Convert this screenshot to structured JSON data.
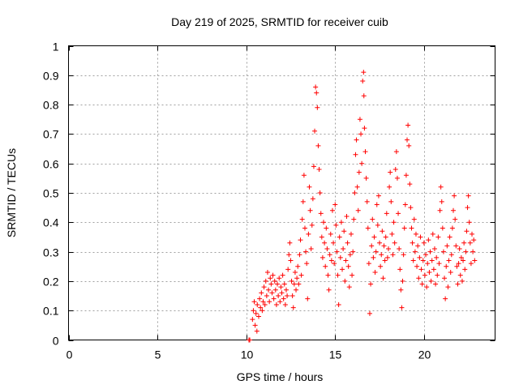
{
  "chart_data": {
    "type": "scatter",
    "title": "Day 219 of 2025, SRMTID for receiver cuib",
    "xlabel": "GPS time / hours",
    "ylabel": "SRMTID / TECUs",
    "xlim": [
      0,
      24
    ],
    "ylim": [
      0,
      1
    ],
    "xticks": [
      "0",
      "5",
      "10",
      "15",
      "20"
    ],
    "xtick_values": [
      0,
      5,
      10,
      15,
      20
    ],
    "yticks": [
      "0",
      "0.1",
      "0.2",
      "0.3",
      "0.4",
      "0.5",
      "0.6",
      "0.7",
      "0.8",
      "0.9",
      "1"
    ],
    "ytick_values": [
      0,
      0.1,
      0.2,
      0.3,
      0.4,
      0.5,
      0.6,
      0.7,
      0.8,
      0.9,
      1.0
    ],
    "grid": true,
    "marker": "+",
    "color": "#ff0000",
    "series": [
      {
        "name": "SRMTID",
        "points": [
          [
            10.15,
            0.0
          ],
          [
            10.2,
            0.0
          ],
          [
            10.35,
            0.07
          ],
          [
            10.4,
            0.1
          ],
          [
            10.45,
            0.13
          ],
          [
            10.5,
            0.05
          ],
          [
            10.55,
            0.09
          ],
          [
            10.6,
            0.03
          ],
          [
            10.62,
            0.12
          ],
          [
            10.7,
            0.08
          ],
          [
            10.75,
            0.14
          ],
          [
            10.8,
            0.11
          ],
          [
            10.85,
            0.16
          ],
          [
            10.9,
            0.1
          ],
          [
            10.95,
            0.13
          ],
          [
            11.0,
            0.18
          ],
          [
            11.05,
            0.12
          ],
          [
            11.1,
            0.2
          ],
          [
            11.15,
            0.15
          ],
          [
            11.2,
            0.23
          ],
          [
            11.25,
            0.17
          ],
          [
            11.3,
            0.13
          ],
          [
            11.35,
            0.21
          ],
          [
            11.4,
            0.19
          ],
          [
            11.45,
            0.16
          ],
          [
            11.5,
            0.22
          ],
          [
            11.55,
            0.14
          ],
          [
            11.6,
            0.2
          ],
          [
            11.65,
            0.17
          ],
          [
            11.7,
            0.12
          ],
          [
            11.75,
            0.19
          ],
          [
            11.8,
            0.15
          ],
          [
            11.85,
            0.21
          ],
          [
            11.9,
            0.13
          ],
          [
            11.95,
            0.18
          ],
          [
            12.0,
            0.16
          ],
          [
            12.05,
            0.22
          ],
          [
            12.1,
            0.14
          ],
          [
            12.15,
            0.19
          ],
          [
            12.2,
            0.12
          ],
          [
            12.25,
            0.17
          ],
          [
            12.3,
            0.15
          ],
          [
            12.35,
            0.24
          ],
          [
            12.4,
            0.29
          ],
          [
            12.45,
            0.33
          ],
          [
            12.5,
            0.27
          ],
          [
            12.55,
            0.2
          ],
          [
            12.6,
            0.15
          ],
          [
            12.65,
            0.11
          ],
          [
            12.7,
            0.19
          ],
          [
            12.75,
            0.23
          ],
          [
            12.8,
            0.17
          ],
          [
            12.85,
            0.21
          ],
          [
            12.9,
            0.25
          ],
          [
            12.95,
            0.19
          ],
          [
            13.0,
            0.29
          ],
          [
            13.05,
            0.34
          ],
          [
            13.1,
            0.22
          ],
          [
            13.15,
            0.41
          ],
          [
            13.2,
            0.47
          ],
          [
            13.25,
            0.56
          ],
          [
            13.3,
            0.38
          ],
          [
            13.35,
            0.3
          ],
          [
            13.4,
            0.26
          ],
          [
            13.45,
            0.14
          ],
          [
            13.5,
            0.36
          ],
          [
            13.55,
            0.52
          ],
          [
            13.6,
            0.44
          ],
          [
            13.65,
            0.31
          ],
          [
            13.7,
            0.39
          ],
          [
            13.75,
            0.48
          ],
          [
            13.8,
            0.59
          ],
          [
            13.85,
            0.71
          ],
          [
            13.9,
            0.86
          ],
          [
            13.95,
            0.84
          ],
          [
            14.0,
            0.79
          ],
          [
            14.05,
            0.66
          ],
          [
            14.1,
            0.58
          ],
          [
            14.15,
            0.5
          ],
          [
            14.2,
            0.43
          ],
          [
            14.25,
            0.35
          ],
          [
            14.3,
            0.28
          ],
          [
            14.35,
            0.4
          ],
          [
            14.4,
            0.33
          ],
          [
            14.45,
            0.25
          ],
          [
            14.5,
            0.38
          ],
          [
            14.55,
            0.31
          ],
          [
            14.6,
            0.22
          ],
          [
            14.65,
            0.17
          ],
          [
            14.7,
            0.29
          ],
          [
            14.75,
            0.36
          ],
          [
            14.8,
            0.27
          ],
          [
            14.85,
            0.44
          ],
          [
            14.9,
            0.33
          ],
          [
            14.95,
            0.26
          ],
          [
            15.0,
            0.46
          ],
          [
            15.05,
            0.39
          ],
          [
            15.1,
            0.3
          ],
          [
            15.15,
            0.22
          ],
          [
            15.2,
            0.12
          ],
          [
            15.25,
            0.35
          ],
          [
            15.3,
            0.28
          ],
          [
            15.35,
            0.4
          ],
          [
            15.4,
            0.24
          ],
          [
            15.45,
            0.31
          ],
          [
            15.5,
            0.37
          ],
          [
            15.55,
            0.2
          ],
          [
            15.6,
            0.27
          ],
          [
            15.65,
            0.42
          ],
          [
            15.7,
            0.33
          ],
          [
            15.75,
            0.25
          ],
          [
            15.8,
            0.18
          ],
          [
            15.85,
            0.29
          ],
          [
            15.9,
            0.36
          ],
          [
            15.95,
            0.22
          ],
          [
            16.0,
            0.3
          ],
          [
            16.05,
            0.41
          ],
          [
            16.1,
            0.5
          ],
          [
            16.15,
            0.63
          ],
          [
            16.2,
            0.68
          ],
          [
            16.25,
            0.52
          ],
          [
            16.3,
            0.44
          ],
          [
            16.35,
            0.57
          ],
          [
            16.4,
            0.75
          ],
          [
            16.45,
            0.7
          ],
          [
            16.5,
            0.6
          ],
          [
            16.55,
            0.88
          ],
          [
            16.6,
            0.91
          ],
          [
            16.62,
            0.83
          ],
          [
            16.65,
            0.72
          ],
          [
            16.7,
            0.64
          ],
          [
            16.75,
            0.55
          ],
          [
            16.8,
            0.47
          ],
          [
            16.85,
            0.38
          ],
          [
            16.9,
            0.26
          ],
          [
            16.95,
            0.09
          ],
          [
            17.0,
            0.19
          ],
          [
            17.05,
            0.32
          ],
          [
            17.1,
            0.41
          ],
          [
            17.15,
            0.28
          ],
          [
            17.2,
            0.35
          ],
          [
            17.25,
            0.23
          ],
          [
            17.3,
            0.3
          ],
          [
            17.35,
            0.46
          ],
          [
            17.4,
            0.39
          ],
          [
            17.45,
            0.49
          ],
          [
            17.5,
            0.33
          ],
          [
            17.55,
            0.25
          ],
          [
            17.6,
            0.29
          ],
          [
            17.65,
            0.37
          ],
          [
            17.7,
            0.21
          ],
          [
            17.75,
            0.32
          ],
          [
            17.8,
            0.27
          ],
          [
            17.85,
            0.35
          ],
          [
            17.9,
            0.43
          ],
          [
            17.95,
            0.28
          ],
          [
            18.0,
            0.31
          ],
          [
            18.05,
            0.52
          ],
          [
            18.1,
            0.57
          ],
          [
            18.15,
            0.47
          ],
          [
            18.2,
            0.36
          ],
          [
            18.25,
            0.29
          ],
          [
            18.3,
            0.4
          ],
          [
            18.35,
            0.33
          ],
          [
            18.4,
            0.58
          ],
          [
            18.45,
            0.64
          ],
          [
            18.5,
            0.55
          ],
          [
            18.55,
            0.43
          ],
          [
            18.6,
            0.31
          ],
          [
            18.65,
            0.24
          ],
          [
            18.7,
            0.17
          ],
          [
            18.75,
            0.11
          ],
          [
            18.8,
            0.2
          ],
          [
            18.85,
            0.29
          ],
          [
            18.9,
            0.38
          ],
          [
            18.95,
            0.46
          ],
          [
            19.0,
            0.56
          ],
          [
            19.05,
            0.68
          ],
          [
            19.1,
            0.73
          ],
          [
            19.15,
            0.66
          ],
          [
            19.2,
            0.53
          ],
          [
            19.25,
            0.45
          ],
          [
            19.3,
            0.38
          ],
          [
            19.35,
            0.33
          ],
          [
            19.4,
            0.27
          ],
          [
            19.45,
            0.41
          ],
          [
            19.5,
            0.3
          ],
          [
            19.55,
            0.36
          ],
          [
            19.6,
            0.25
          ],
          [
            19.65,
            0.32
          ],
          [
            19.7,
            0.21
          ],
          [
            19.75,
            0.28
          ],
          [
            19.8,
            0.35
          ],
          [
            19.85,
            0.24
          ],
          [
            19.9,
            0.19
          ],
          [
            19.95,
            0.27
          ],
          [
            20.0,
            0.33
          ],
          [
            20.05,
            0.22
          ],
          [
            20.1,
            0.29
          ],
          [
            20.15,
            0.18
          ],
          [
            20.2,
            0.26
          ],
          [
            20.25,
            0.34
          ],
          [
            20.3,
            0.23
          ],
          [
            20.35,
            0.3
          ],
          [
            20.4,
            0.2
          ],
          [
            20.45,
            0.27
          ],
          [
            20.5,
            0.36
          ],
          [
            20.55,
            0.24
          ],
          [
            20.6,
            0.31
          ],
          [
            20.65,
            0.19
          ],
          [
            20.7,
            0.28
          ],
          [
            20.75,
            0.22
          ],
          [
            20.8,
            0.35
          ],
          [
            20.85,
            0.26
          ],
          [
            20.9,
            0.44
          ],
          [
            20.95,
            0.52
          ],
          [
            21.0,
            0.47
          ],
          [
            21.05,
            0.38
          ],
          [
            21.1,
            0.3
          ],
          [
            21.15,
            0.21
          ],
          [
            21.2,
            0.14
          ],
          [
            21.25,
            0.25
          ],
          [
            21.3,
            0.32
          ],
          [
            21.35,
            0.18
          ],
          [
            21.4,
            0.27
          ],
          [
            21.45,
            0.35
          ],
          [
            21.5,
            0.23
          ],
          [
            21.55,
            0.29
          ],
          [
            21.6,
            0.38
          ],
          [
            21.65,
            0.44
          ],
          [
            21.7,
            0.49
          ],
          [
            21.75,
            0.41
          ],
          [
            21.8,
            0.32
          ],
          [
            21.85,
            0.25
          ],
          [
            21.9,
            0.19
          ],
          [
            21.95,
            0.26
          ],
          [
            22.0,
            0.31
          ],
          [
            22.05,
            0.22
          ],
          [
            22.1,
            0.28
          ],
          [
            22.15,
            0.2
          ],
          [
            22.2,
            0.27
          ],
          [
            22.25,
            0.33
          ],
          [
            22.3,
            0.24
          ],
          [
            22.35,
            0.3
          ],
          [
            22.4,
            0.37
          ],
          [
            22.45,
            0.45
          ],
          [
            22.5,
            0.49
          ],
          [
            22.55,
            0.4
          ],
          [
            22.6,
            0.33
          ],
          [
            22.65,
            0.26
          ],
          [
            22.7,
            0.36
          ],
          [
            22.75,
            0.3
          ],
          [
            22.8,
            0.34
          ],
          [
            22.85,
            0.27
          ]
        ]
      }
    ]
  }
}
